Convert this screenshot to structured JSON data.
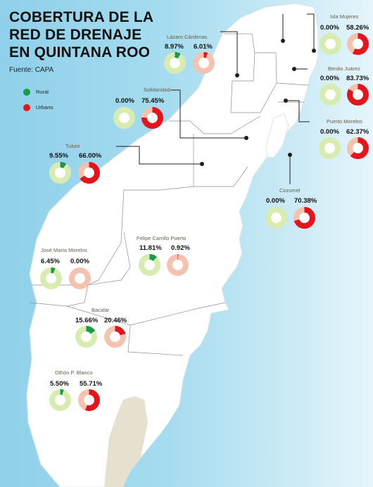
{
  "title_lines": [
    "COBERTURA DE LA",
    "RED DE DRENAJE",
    "EN QUINTANA ROO"
  ],
  "source": "Fuente: CAPA",
  "legend": [
    {
      "label": "Rural",
      "color": "#1a9a4e"
    },
    {
      "label": "Urbano",
      "color": "#e3141b"
    }
  ],
  "colors": {
    "rural": "#1a9a4e",
    "rural_bg": "#d9ecb0",
    "urban": "#e3141b",
    "urban_bg": "#f5c2b0",
    "land": "#ffffff",
    "belize": "#e6e1cf",
    "water": "#a6dcef"
  },
  "municipalities": [
    {
      "id": "isla-mujeres",
      "name": "Isla Mujeres",
      "rural": 0.0,
      "urban": 58.26,
      "rural_text": "0.00%",
      "urban_text": "58.26%"
    },
    {
      "id": "lazaro-cardenas",
      "name": "Lázaro Cárdenas",
      "rural": 8.97,
      "urban": 6.01,
      "rural_text": "8.97%",
      "urban_text": "6.01%"
    },
    {
      "id": "benito-juarez",
      "name": "Benito Juárez",
      "rural": 0.0,
      "urban": 83.73,
      "rural_text": "0.00%",
      "urban_text": "83.73%"
    },
    {
      "id": "solidaridad",
      "name": "Solidaridad",
      "rural": 0.0,
      "urban": 75.45,
      "rural_text": "0.00%",
      "urban_text": "75.45%"
    },
    {
      "id": "puerto-morelos",
      "name": "Puerto Morelos",
      "rural": 0.0,
      "urban": 62.37,
      "rural_text": "0.00%",
      "urban_text": "62.37%"
    },
    {
      "id": "tulum",
      "name": "Tulum",
      "rural": 9.55,
      "urban": 66.0,
      "rural_text": "9.55%",
      "urban_text": "66.00%"
    },
    {
      "id": "cozumel",
      "name": "Cozumel",
      "rural": 0.0,
      "urban": 70.38,
      "rural_text": "0.00%",
      "urban_text": "70.38%"
    },
    {
      "id": "felipe-carrillo-puerto",
      "name": "Felipe Carrillo Puerto",
      "rural": 11.81,
      "urban": 0.92,
      "rural_text": "11.81%",
      "urban_text": "0.92%"
    },
    {
      "id": "jose-maria-morelos",
      "name": "José María Morelos",
      "rural": 6.45,
      "urban": 0.0,
      "rural_text": "6.45%",
      "urban_text": "0.00%"
    },
    {
      "id": "bacalar",
      "name": "Bacalar",
      "rural": 15.66,
      "urban": 20.46,
      "rural_text": "15.66%",
      "urban_text": "20.46%"
    },
    {
      "id": "othon-p-blanco",
      "name": "Othón P. Blanco",
      "rural": 5.5,
      "urban": 55.71,
      "rural_text": "5.50%",
      "urban_text": "55.71%"
    }
  ]
}
